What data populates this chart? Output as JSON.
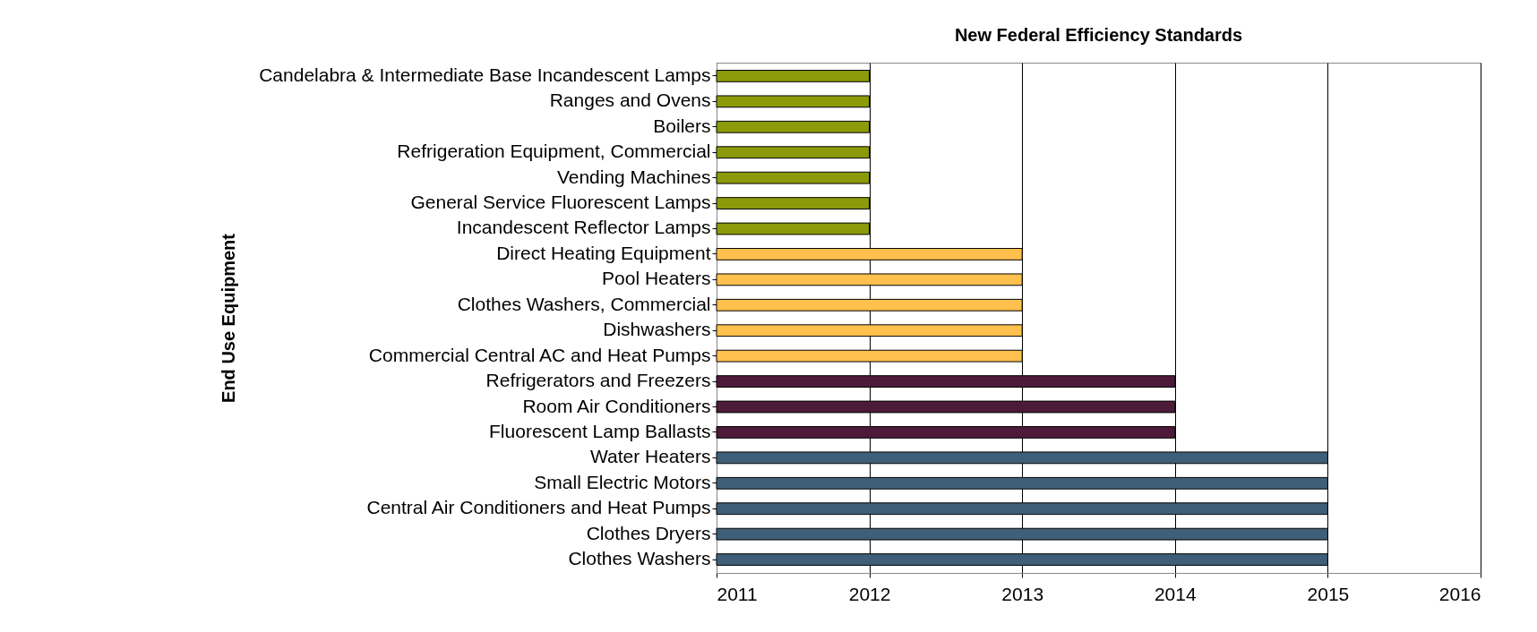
{
  "chart_data": {
    "type": "bar",
    "orientation": "horizontal",
    "title": "New Federal Efficiency Standards",
    "ylabel": "End Use Equipment",
    "categories": [
      "Candelabra & Intermediate Base Incandescent Lamps",
      "Ranges and Ovens",
      "Boilers",
      "Refrigeration Equipment, Commercial",
      "Vending Machines",
      "General Service Fluorescent Lamps",
      "Incandescent Reflector Lamps",
      "Direct Heating Equipment",
      "Pool Heaters",
      "Clothes Washers, Commercial",
      "Dishwashers",
      "Commercial Central AC and Heat Pumps",
      "Refrigerators and Freezers",
      "Room Air Conditioners",
      "Fluorescent Lamp Ballasts",
      "Water Heaters",
      "Small Electric Motors",
      "Central Air Conditioners and Heat Pumps",
      "Clothes Dryers",
      "Clothes Washers"
    ],
    "values": [
      2012,
      2012,
      2012,
      2012,
      2012,
      2012,
      2012,
      2013,
      2013,
      2013,
      2013,
      2013,
      2014,
      2014,
      2014,
      2015,
      2015,
      2015,
      2015,
      2015
    ],
    "colors": [
      "#8c9a0a",
      "#8c9a0a",
      "#8c9a0a",
      "#8c9a0a",
      "#8c9a0a",
      "#8c9a0a",
      "#8c9a0a",
      "#ffc04d",
      "#ffc04d",
      "#ffc04d",
      "#ffc04d",
      "#ffc04d",
      "#4d1a3a",
      "#4d1a3a",
      "#4d1a3a",
      "#3f5f78",
      "#3f5f78",
      "#3f5f78",
      "#3f5f78",
      "#3f5f78"
    ],
    "xlim": [
      2011,
      2016
    ],
    "xticks": [
      2011,
      2012,
      2013,
      2014,
      2015,
      2016
    ],
    "grid": "x"
  }
}
